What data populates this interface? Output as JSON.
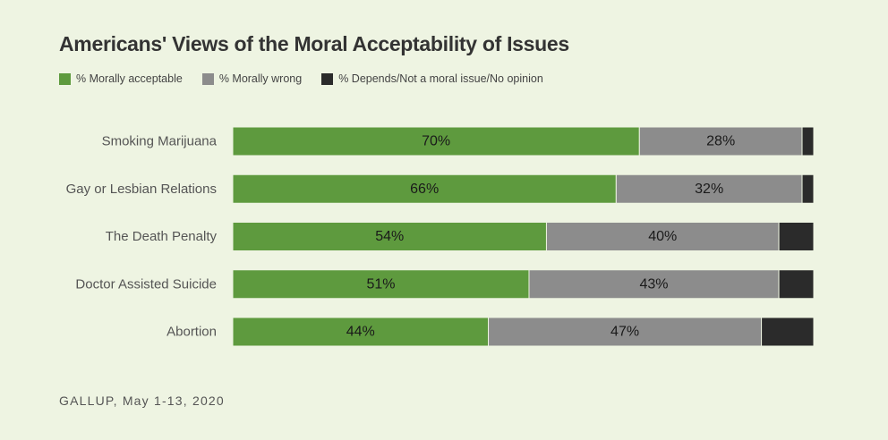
{
  "chart_data": {
    "type": "bar",
    "orientation": "horizontal",
    "stacked": true,
    "title": "Americans' Views of the Moral Acceptability of Issues",
    "categories": [
      "Smoking Marijuana",
      "Gay or Lesbian Relations",
      "The Death Penalty",
      "Doctor Assisted Suicide",
      "Abortion"
    ],
    "series": [
      {
        "name": "% Morally acceptable",
        "color": "#5e9a3e",
        "values": [
          70,
          66,
          54,
          51,
          44
        ],
        "labels": [
          "70%",
          "66%",
          "54%",
          "51%",
          "44%"
        ]
      },
      {
        "name": "% Morally wrong",
        "color": "#8c8c8c",
        "values": [
          28,
          32,
          40,
          43,
          47
        ],
        "labels": [
          "28%",
          "32%",
          "40%",
          "43%",
          "47%"
        ]
      },
      {
        "name": "% Depends/Not a moral issue/No opinion",
        "color": "#2b2b2b",
        "values": [
          2,
          2,
          6,
          6,
          9
        ]
      }
    ],
    "xlim": [
      0,
      100
    ],
    "grid": false,
    "legend_position": "top-left"
  },
  "source": "GALLUP, May 1-13, 2020"
}
